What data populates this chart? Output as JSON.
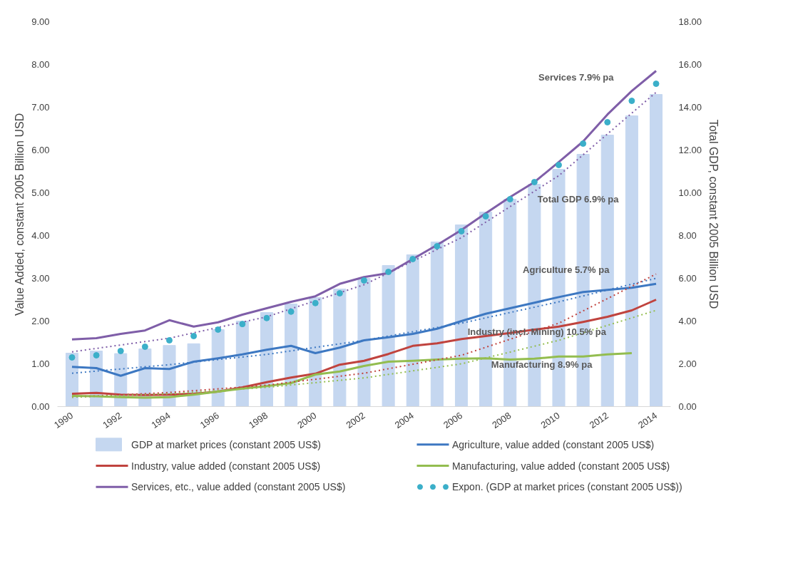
{
  "chart_data": {
    "type": "line",
    "ylabel": "Value Added, constant 2005 Billion USD",
    "y2label": "Total GDP, constant 2005 Billion USD",
    "x": [
      1990,
      1991,
      1992,
      1993,
      1994,
      1995,
      1996,
      1997,
      1998,
      1999,
      2000,
      2001,
      2002,
      2003,
      2004,
      2005,
      2006,
      2007,
      2008,
      2009,
      2010,
      2011,
      2012,
      2013,
      2014
    ],
    "xlim": [
      1989.4,
      2014.6
    ],
    "xticks": [
      1990,
      1992,
      1994,
      1996,
      1998,
      2000,
      2002,
      2004,
      2006,
      2008,
      2010,
      2012,
      2014
    ],
    "ylim": [
      0,
      9
    ],
    "yticks": [
      {
        "value": 0,
        "label": "0.00"
      },
      {
        "value": 1,
        "label": "1.00"
      },
      {
        "value": 2,
        "label": "2.00"
      },
      {
        "value": 3,
        "label": "3.00"
      },
      {
        "value": 4,
        "label": "4.00"
      },
      {
        "value": 5,
        "label": "5.00"
      },
      {
        "value": 6,
        "label": "6.00"
      },
      {
        "value": 7,
        "label": "7.00"
      },
      {
        "value": 8,
        "label": "8.00"
      },
      {
        "value": 9,
        "label": "9.00"
      }
    ],
    "y2lim": [
      0,
      18
    ],
    "y2ticks": [
      {
        "value": 0,
        "label": "0.00"
      },
      {
        "value": 2,
        "label": "2.00"
      },
      {
        "value": 4,
        "label": "4.00"
      },
      {
        "value": 6,
        "label": "6.00"
      },
      {
        "value": 8,
        "label": "8.00"
      },
      {
        "value": 10,
        "label": "10.00"
      },
      {
        "value": 12,
        "label": "12.00"
      },
      {
        "value": 14,
        "label": "14.00"
      },
      {
        "value": 16,
        "label": "16.00"
      },
      {
        "value": 18,
        "label": "18.00"
      }
    ],
    "grid": false,
    "legend": "bottom",
    "line_style": "solid",
    "series": [
      {
        "name": "GDP at market prices (constant 2005 US$)",
        "type": "bar",
        "axis": "y2",
        "color": "#c5d7f0",
        "values": [
          2.5,
          2.6,
          2.48,
          2.7,
          2.86,
          2.94,
          3.6,
          4.0,
          4.4,
          4.8,
          5.1,
          5.5,
          6.0,
          6.6,
          7.1,
          7.7,
          8.5,
          9.1,
          9.7,
          10.4,
          11.1,
          11.8,
          12.7,
          13.6,
          14.6
        ]
      },
      {
        "name": "Agriculture, value added (constant 2005 US$)",
        "color": "#3d78c2",
        "values": [
          0.93,
          0.9,
          0.72,
          0.9,
          0.88,
          1.05,
          1.13,
          1.22,
          1.33,
          1.42,
          1.25,
          1.38,
          1.55,
          1.62,
          1.7,
          1.82,
          2.0,
          2.17,
          2.3,
          2.43,
          2.56,
          2.68,
          2.73,
          2.78,
          2.87
        ]
      },
      {
        "name": "Industry, value added (constant 2005 US$)",
        "color": "#c0433e",
        "values": [
          0.3,
          0.32,
          0.28,
          0.27,
          0.28,
          0.3,
          0.35,
          0.45,
          0.57,
          0.68,
          0.77,
          0.98,
          1.07,
          1.23,
          1.42,
          1.48,
          1.58,
          1.65,
          1.72,
          1.8,
          1.87,
          1.98,
          2.1,
          2.25,
          2.5
        ]
      },
      {
        "name": "Manufacturing, value added (constant 2005 US$)",
        "color": "#93bd4f",
        "values": [
          0.25,
          0.24,
          0.22,
          0.21,
          0.22,
          0.28,
          0.35,
          0.42,
          0.48,
          0.55,
          0.75,
          0.82,
          0.95,
          1.05,
          1.07,
          1.1,
          1.12,
          1.13,
          1.1,
          1.12,
          1.17,
          1.17,
          1.22,
          1.25,
          null
        ]
      },
      {
        "name": "Services, etc., value added (constant 2005 US$)",
        "color": "#7f5ea8",
        "values": [
          1.57,
          1.6,
          1.7,
          1.78,
          2.02,
          1.87,
          1.97,
          2.15,
          2.3,
          2.45,
          2.58,
          2.87,
          3.03,
          3.12,
          3.45,
          3.78,
          4.13,
          4.52,
          4.9,
          5.25,
          5.72,
          6.2,
          6.83,
          7.38,
          7.85
        ]
      },
      {
        "name": "Expon. (GDP at market prices (constant 2005 US$))",
        "type": "scatter",
        "marker": "circle",
        "axis": "y2",
        "color": "#3bafc9",
        "values": [
          2.3,
          2.4,
          2.6,
          2.8,
          3.1,
          3.3,
          3.6,
          3.86,
          4.14,
          4.44,
          4.84,
          5.3,
          5.9,
          6.3,
          6.9,
          7.5,
          8.2,
          8.9,
          9.7,
          10.5,
          11.3,
          12.3,
          13.3,
          14.3,
          15.1
        ]
      },
      {
        "type": "line",
        "line_style": "dotted",
        "color": "#7f5ea8",
        "x": [
          1990,
          1994,
          1998,
          2002,
          2006,
          2010,
          2014
        ],
        "values": [
          1.28,
          1.6,
          2.1,
          2.85,
          3.95,
          5.4,
          7.35
        ]
      },
      {
        "type": "line",
        "line_style": "dotted",
        "color": "#3d78c2",
        "x": [
          1990,
          1994,
          1998,
          2002,
          2006,
          2010,
          2014
        ],
        "values": [
          0.78,
          0.98,
          1.22,
          1.55,
          1.95,
          2.45,
          3.0
        ]
      },
      {
        "type": "line",
        "line_style": "dotted",
        "color": "#c0433e",
        "x": [
          1990,
          1994,
          1998,
          2002,
          2006,
          2010,
          2014
        ],
        "values": [
          0.22,
          0.33,
          0.5,
          0.78,
          1.2,
          1.95,
          3.1
        ]
      },
      {
        "type": "line",
        "line_style": "dotted",
        "color": "#93bd4f",
        "x": [
          1990,
          1994,
          1998,
          2002,
          2006,
          2010,
          2014
        ],
        "values": [
          0.22,
          0.3,
          0.45,
          0.67,
          1.0,
          1.55,
          2.25
        ]
      }
    ],
    "annotations": [
      "Services 7.9% pa",
      {
        "text": "Total GDP 6.9% pa",
        "x": 2010.8,
        "y": 4.85
      },
      {
        "text": "Agriculture 5.7% pa",
        "x": 2010.3,
        "y": 3.2
      },
      {
        "text": "Industry (incl. Mining) 10.5% pa",
        "x": 2009.1,
        "y": 1.75
      },
      {
        "text": "Manufacturing 8.9% pa",
        "x": 2009.3,
        "y": 0.98
      }
    ]
  }
}
